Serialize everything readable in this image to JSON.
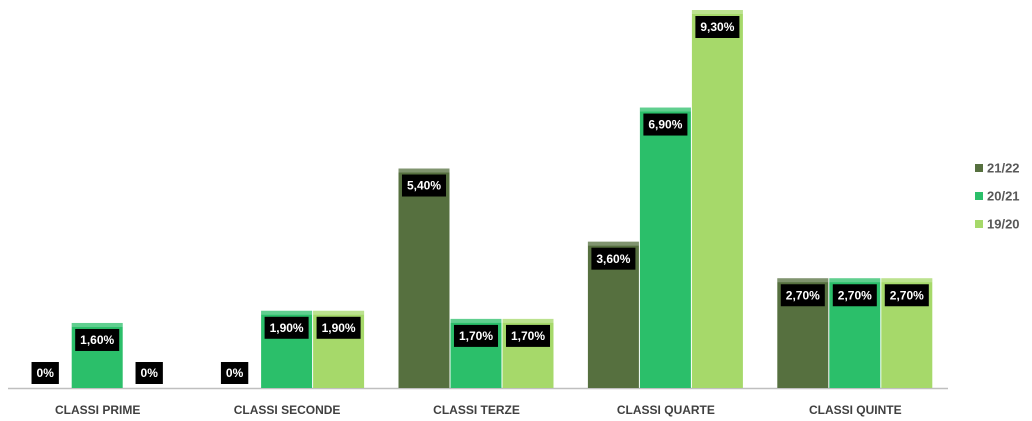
{
  "chart_data": {
    "type": "bar",
    "categories": [
      "CLASSI PRIME",
      "CLASSI SECONDE",
      "CLASSI TERZE",
      "CLASSI QUARTE",
      "CLASSI QUINTE"
    ],
    "series": [
      {
        "name": "21/22",
        "color": "#56703f",
        "values": [
          0,
          0,
          5.4,
          3.6,
          2.7
        ],
        "value_labels": [
          "0%",
          "0%",
          "5,40%",
          "3,60%",
          "2,70%"
        ]
      },
      {
        "name": "20/21",
        "color": "#2bbf6a",
        "values": [
          1.6,
          1.9,
          1.7,
          6.9,
          2.7
        ],
        "value_labels": [
          "1,60%",
          "1,90%",
          "1,70%",
          "6,90%",
          "2,70%"
        ]
      },
      {
        "name": "19/20",
        "color": "#a6d96a",
        "values": [
          0,
          1.9,
          1.7,
          9.3,
          2.7
        ],
        "value_labels": [
          "0%",
          "1,90%",
          "1,70%",
          "9,30%",
          "2,70%"
        ]
      }
    ],
    "legend": "right"
  }
}
